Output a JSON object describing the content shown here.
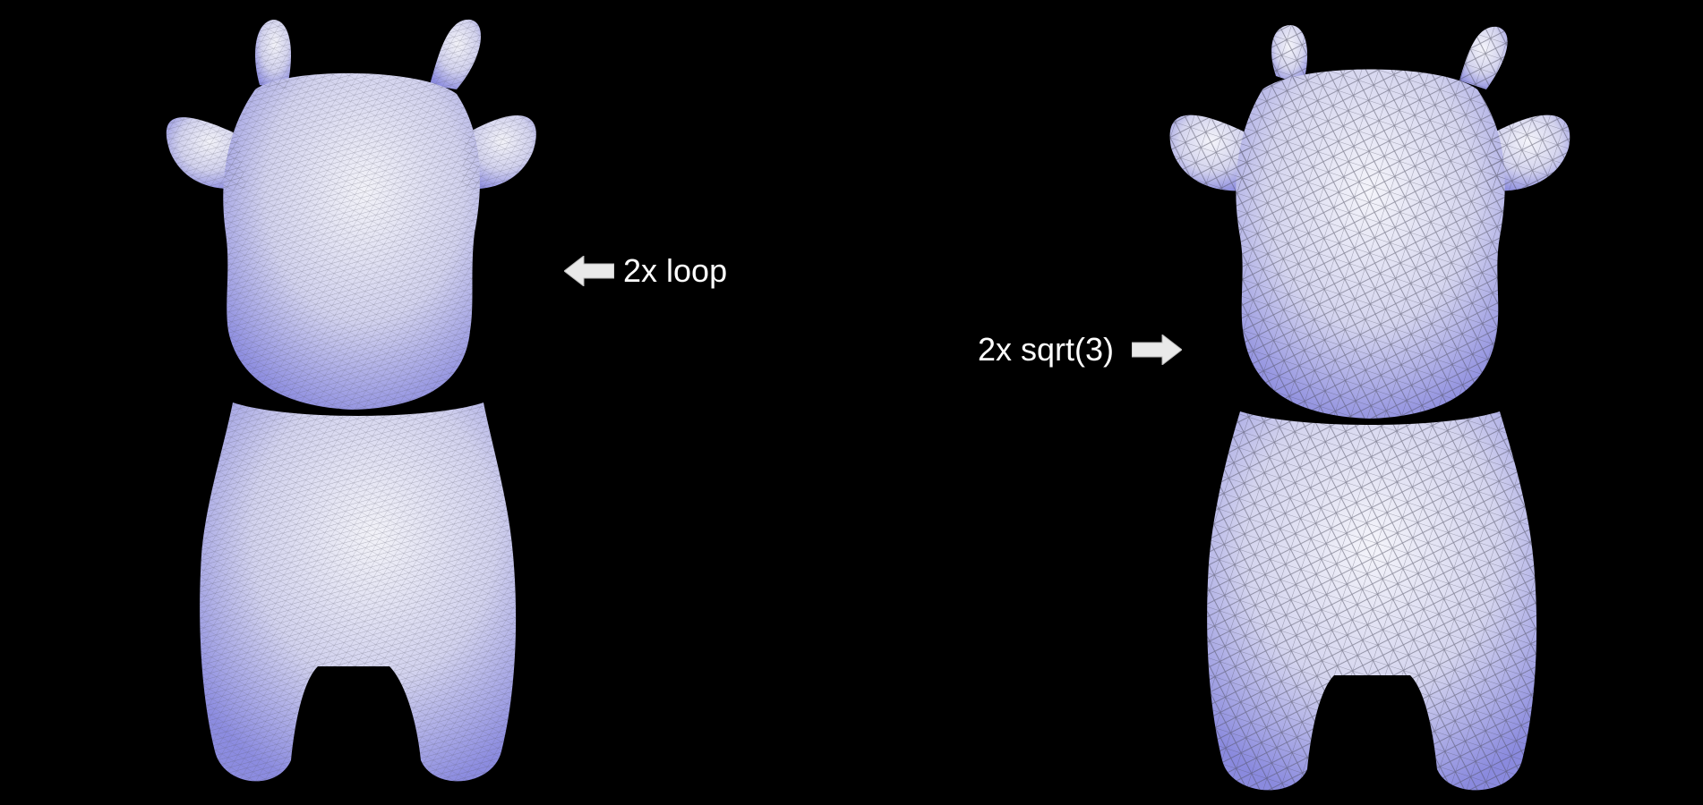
{
  "annotations": {
    "left": {
      "text": "2x loop",
      "arrow": "arrow-left-icon"
    },
    "right": {
      "text": "2x sqrt(3)",
      "arrow": "arrow-right-icon"
    }
  },
  "meshes": {
    "left": {
      "icon": "cow-mesh-loop-icon"
    },
    "right": {
      "icon": "cow-mesh-sqrt3-icon"
    }
  },
  "colors": {
    "background": "#000000",
    "mesh_fill": "#b8b8ee",
    "mesh_highlight": "#ececf6",
    "mesh_line": "#555566",
    "text": "#ffffff"
  }
}
